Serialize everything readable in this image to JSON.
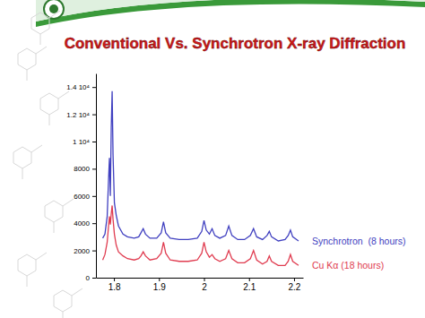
{
  "chart_data": {
    "type": "line",
    "title": "Conventional Vs. Synchrotron X-ray Diffraction",
    "x": [
      1.775,
      1.78,
      1.785,
      1.788,
      1.79,
      1.792,
      1.794,
      1.796,
      1.798,
      1.801,
      1.805,
      1.81,
      1.82,
      1.83,
      1.845,
      1.855,
      1.86,
      1.865,
      1.87,
      1.88,
      1.895,
      1.905,
      1.91,
      1.915,
      1.925,
      1.945,
      1.965,
      1.985,
      1.995,
      2.0,
      2.005,
      2.012,
      2.018,
      2.024,
      2.035,
      2.048,
      2.055,
      2.062,
      2.075,
      2.09,
      2.103,
      2.11,
      2.117,
      2.13,
      2.14,
      2.145,
      2.15,
      2.165,
      2.18,
      2.187,
      2.192,
      2.197,
      2.21
    ],
    "series": [
      {
        "name": "Synchrotron  (8 hours)",
        "color": "#4040c0",
        "values": [
          2900,
          3200,
          4500,
          7200,
          8800,
          6000,
          11000,
          13700,
          9000,
          5500,
          4600,
          3800,
          3200,
          3000,
          2900,
          3000,
          3300,
          3600,
          3200,
          2900,
          2900,
          3300,
          4100,
          3300,
          2900,
          2800,
          2800,
          2900,
          3400,
          4200,
          3500,
          3200,
          3600,
          3100,
          2900,
          3100,
          3800,
          3100,
          2800,
          2800,
          3100,
          3600,
          3000,
          2800,
          3100,
          3400,
          3000,
          2700,
          2800,
          3100,
          3500,
          3000,
          2700
        ]
      },
      {
        "name": "Cu Kα (18 hours)",
        "color": "#e03c50",
        "values": [
          1300,
          1700,
          2600,
          3800,
          4500,
          3900,
          4700,
          5300,
          4300,
          3200,
          2400,
          1900,
          1600,
          1400,
          1300,
          1400,
          1600,
          1900,
          1600,
          1300,
          1400,
          1800,
          2600,
          1800,
          1300,
          1200,
          1200,
          1300,
          1800,
          2600,
          1900,
          1500,
          1700,
          1400,
          1200,
          1400,
          2000,
          1400,
          1100,
          1100,
          1400,
          2000,
          1300,
          1000,
          1200,
          1600,
          1200,
          900,
          900,
          1200,
          1700,
          1200,
          900
        ]
      }
    ],
    "xlim": [
      1.76,
      2.22
    ],
    "ylim": [
      0,
      15000
    ],
    "xticks": [
      1.8,
      1.9,
      2,
      2.1,
      2.2
    ],
    "yticks": [
      0,
      2000,
      4000,
      6000,
      8000,
      {
        "value": 10000,
        "label": "1 10⁴"
      },
      {
        "value": 12000,
        "label": "1.2 10⁴"
      },
      {
        "value": 14000,
        "label": "1.4 10⁴"
      }
    ]
  }
}
